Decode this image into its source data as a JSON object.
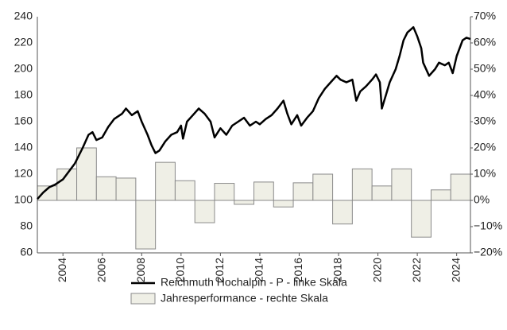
{
  "chart_data": {
    "type": "combo",
    "xlim": [
      2002.7,
      2024.7
    ],
    "xticks": [
      2004,
      2006,
      2008,
      2010,
      2012,
      2014,
      2016,
      2018,
      2020,
      2022,
      2024
    ],
    "ylim": [
      60,
      240
    ],
    "yticks": [
      60,
      80,
      100,
      120,
      140,
      160,
      180,
      200,
      220,
      240
    ],
    "y2lim": [
      -20,
      70
    ],
    "y2ticks": [
      {
        "value": -20,
        "label": "−20%"
      },
      {
        "value": -10,
        "label": "−10%"
      },
      {
        "value": 0,
        "label": "0%"
      },
      {
        "value": 10,
        "label": "10%"
      },
      {
        "value": 20,
        "label": "20%"
      },
      {
        "value": 30,
        "label": "30%"
      },
      {
        "value": 40,
        "label": "40%"
      },
      {
        "value": 50,
        "label": "50%"
      },
      {
        "value": 60,
        "label": "60%"
      },
      {
        "value": 70,
        "label": "70%"
      }
    ],
    "series": [
      {
        "name": "Jahresperformance - rechte Skala",
        "type": "bar",
        "axis": "y2",
        "color": "#efefe6",
        "x": [
          2003,
          2004,
          2005,
          2006,
          2007,
          2008,
          2009,
          2010,
          2011,
          2012,
          2013,
          2014,
          2015,
          2016,
          2017,
          2018,
          2019,
          2020,
          2021,
          2022,
          2023,
          2024
        ],
        "values": [
          5.5,
          12,
          20,
          9,
          8.5,
          -18.5,
          14.5,
          7.5,
          -8.5,
          6.5,
          -1.5,
          7,
          -2.5,
          6.7,
          10,
          -9,
          12,
          5.5,
          12,
          -14,
          4,
          10
        ]
      },
      {
        "name": "Reichmuth Hochalpin - P - linke Skala",
        "type": "line",
        "axis": "y",
        "color": "#000000",
        "x": [
          2002.7,
          2003,
          2003.3,
          2003.6,
          2004,
          2004.3,
          2004.6,
          2005,
          2005.3,
          2005.5,
          2005.7,
          2006,
          2006.3,
          2006.6,
          2007,
          2007.2,
          2007.5,
          2007.8,
          2008,
          2008.3,
          2008.5,
          2008.7,
          2008.9,
          2009.2,
          2009.5,
          2009.8,
          2010,
          2010.1,
          2010.3,
          2010.6,
          2010.9,
          2011.2,
          2011.5,
          2011.7,
          2012,
          2012.3,
          2012.6,
          2012.9,
          2013.2,
          2013.5,
          2013.8,
          2014,
          2014.3,
          2014.6,
          2014.9,
          2015.2,
          2015.4,
          2015.6,
          2015.9,
          2016.1,
          2016.4,
          2016.7,
          2017,
          2017.3,
          2017.6,
          2017.9,
          2018.1,
          2018.4,
          2018.7,
          2018.9,
          2019.1,
          2019.4,
          2019.7,
          2019.9,
          2020.1,
          2020.2,
          2020.4,
          2020.6,
          2020.9,
          2021.1,
          2021.3,
          2021.5,
          2021.8,
          2022,
          2022.2,
          2022.3,
          2022.6,
          2022.9,
          2023.1,
          2023.4,
          2023.6,
          2023.8,
          2024,
          2024.3,
          2024.5,
          2024.7
        ],
        "values": [
          101,
          106,
          110,
          112,
          116,
          122,
          128,
          140,
          150,
          152,
          146,
          148,
          156,
          162,
          166,
          170,
          165,
          168,
          160,
          150,
          142,
          136,
          138,
          145,
          150,
          152,
          157,
          147,
          160,
          165,
          170,
          166,
          160,
          148,
          155,
          150,
          157,
          160,
          163,
          157,
          160,
          158,
          162,
          165,
          170,
          176,
          166,
          158,
          165,
          157,
          163,
          168,
          178,
          185,
          190,
          195,
          192,
          190,
          192,
          176,
          183,
          187,
          192,
          196,
          190,
          170,
          180,
          190,
          200,
          210,
          222,
          228,
          232,
          225,
          216,
          205,
          195,
          200,
          205,
          203,
          205,
          197,
          210,
          222,
          224,
          223
        ]
      }
    ]
  }
}
